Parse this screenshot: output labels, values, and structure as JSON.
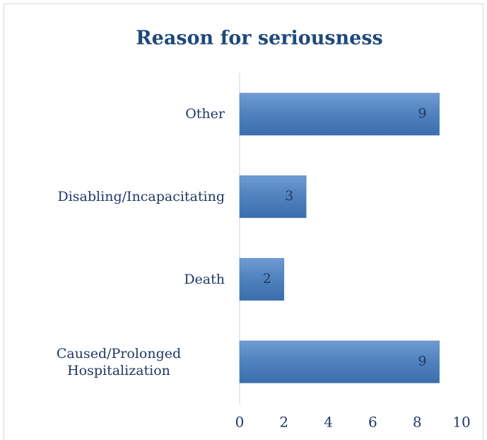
{
  "chart_data": {
    "type": "barh",
    "title": "Reason for seriousness",
    "categories": [
      "Other",
      "Disabling/Incapacitating",
      "Death",
      "Caused/Prolonged Hospitalization"
    ],
    "values": [
      9,
      3,
      2,
      9
    ],
    "color": "#4f81bd",
    "xlim": [
      0,
      10
    ],
    "xticks": [
      0,
      2,
      4,
      6,
      8,
      10
    ],
    "grid": false
  }
}
